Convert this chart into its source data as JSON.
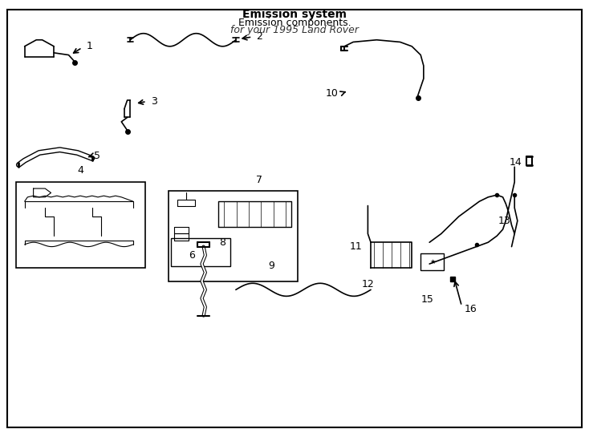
{
  "title": "",
  "background_color": "#ffffff",
  "line_color": "#000000",
  "label_color": "#000000",
  "fig_width": 7.34,
  "fig_height": 5.4,
  "dpi": 100,
  "header_text": "Emission system",
  "subheader_text": "Emission components.",
  "footer_text": "for your 1995 Land Rover",
  "border_color": "#000000"
}
